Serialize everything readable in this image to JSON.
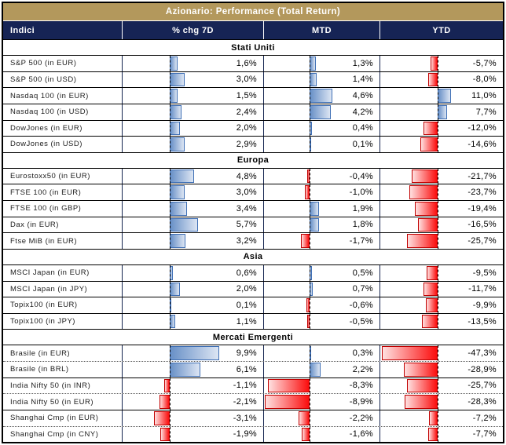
{
  "title": "Azionario: Performance (Total Return)",
  "colors": {
    "header_gold": "#B3985C",
    "header_navy": "#162455",
    "bar_positive_blue": "#6890C7",
    "bar_positive_border": "#3F6FB5",
    "bar_negative_red": "#FB0D0D",
    "bar_negative_border": "#C00000"
  },
  "chart_data": {
    "type": "table",
    "title": "Azionario: Performance (Total Return)",
    "columns": [
      "Indici",
      "% chg 7D",
      "MTD",
      "YTD"
    ],
    "value_unit": "percent",
    "bar_style": "dashed zero axis per column; positive values blue bars extending right, negative values red bars extending left",
    "sections": [
      {
        "name": "Stati Uniti",
        "rows": [
          {
            "label": "S&P 500 (in EUR)",
            "chg7d": 1.6,
            "mtd": 1.3,
            "ytd": -5.7,
            "display": [
              "1,6%",
              "1,3%",
              "-5,7%"
            ],
            "sep": "solid"
          },
          {
            "label": "S&P 500 (in USD)",
            "chg7d": 3.0,
            "mtd": 1.4,
            "ytd": -8.0,
            "display": [
              "3,0%",
              "1,4%",
              "-8,0%"
            ],
            "sep": "solid"
          },
          {
            "label": "Nasdaq 100 (in EUR)",
            "chg7d": 1.5,
            "mtd": 4.6,
            "ytd": 11.0,
            "display": [
              "1,5%",
              "4,6%",
              "11,0%"
            ],
            "sep": "solid"
          },
          {
            "label": "Nasdaq 100 (in USD)",
            "chg7d": 2.4,
            "mtd": 4.2,
            "ytd": 7.7,
            "display": [
              "2,4%",
              "4,2%",
              "7,7%"
            ],
            "sep": "solid"
          },
          {
            "label": "DowJones (in EUR)",
            "chg7d": 2.0,
            "mtd": 0.4,
            "ytd": -12.0,
            "display": [
              "2,0%",
              "0,4%",
              "-12,0%"
            ],
            "sep": "solid"
          },
          {
            "label": "DowJones (in USD)",
            "chg7d": 2.9,
            "mtd": 0.1,
            "ytd": -14.6,
            "display": [
              "2,9%",
              "0,1%",
              "-14,6%"
            ],
            "sep": "solid"
          }
        ]
      },
      {
        "name": "Europa",
        "rows": [
          {
            "label": "Eurostoxx50 (in EUR)",
            "chg7d": 4.8,
            "mtd": -0.4,
            "ytd": -21.7,
            "display": [
              "4,8%",
              "-0,4%",
              "-21,7%"
            ],
            "sep": "solid"
          },
          {
            "label": "FTSE 100 (in EUR)",
            "chg7d": 3.0,
            "mtd": -1.0,
            "ytd": -23.7,
            "display": [
              "3,0%",
              "-1,0%",
              "-23,7%"
            ],
            "sep": "solid"
          },
          {
            "label": "FTSE 100 (in GBP)",
            "chg7d": 3.4,
            "mtd": 1.9,
            "ytd": -19.4,
            "display": [
              "3,4%",
              "1,9%",
              "-19,4%"
            ],
            "sep": "solid"
          },
          {
            "label": "Dax (in EUR)",
            "chg7d": 5.7,
            "mtd": 1.8,
            "ytd": -16.5,
            "display": [
              "5,7%",
              "1,8%",
              "-16,5%"
            ],
            "sep": "solid"
          },
          {
            "label": "Ftse MiB (in EUR)",
            "chg7d": 3.2,
            "mtd": -1.7,
            "ytd": -25.7,
            "display": [
              "3,2%",
              "-1,7%",
              "-25,7%"
            ],
            "sep": "solid"
          }
        ]
      },
      {
        "name": "Asia",
        "rows": [
          {
            "label": "MSCI Japan (in EUR)",
            "chg7d": 0.6,
            "mtd": 0.5,
            "ytd": -9.5,
            "display": [
              "0,6%",
              "0,5%",
              "-9,5%"
            ],
            "sep": "solid"
          },
          {
            "label": "MSCI Japan (in JPY)",
            "chg7d": 2.0,
            "mtd": 0.7,
            "ytd": -11.7,
            "display": [
              "2,0%",
              "0,7%",
              "-11,7%"
            ],
            "sep": "solid"
          },
          {
            "label": "Topix100 (in EUR)",
            "chg7d": 0.1,
            "mtd": -0.6,
            "ytd": -9.9,
            "display": [
              "0,1%",
              "-0,6%",
              "-9,9%"
            ],
            "sep": "solid"
          },
          {
            "label": "Topix100 (in JPY)",
            "chg7d": 1.1,
            "mtd": -0.5,
            "ytd": -13.5,
            "display": [
              "1,1%",
              "-0,5%",
              "-13,5%"
            ],
            "sep": "solid"
          }
        ]
      },
      {
        "name": "Mercati Emergenti",
        "rows": [
          {
            "label": "Brasile (in EUR)",
            "chg7d": 9.9,
            "mtd": 0.3,
            "ytd": -47.3,
            "display": [
              "9,9%",
              "0,3%",
              "-47,3%"
            ],
            "sep": "solid"
          },
          {
            "label": "Brasile (in BRL)",
            "chg7d": 6.1,
            "mtd": 2.2,
            "ytd": -28.9,
            "display": [
              "6,1%",
              "2,2%",
              "-28,9%"
            ],
            "sep": "dotted"
          },
          {
            "label": "India Nifty 50 (in INR)",
            "chg7d": -1.1,
            "mtd": -8.3,
            "ytd": -25.7,
            "display": [
              "-1,1%",
              "-8,3%",
              "-25,7%"
            ],
            "sep": "solid"
          },
          {
            "label": "India Nifty 50 (in EUR)",
            "chg7d": -2.1,
            "mtd": -8.9,
            "ytd": -28.3,
            "display": [
              "-2,1%",
              "-8,9%",
              "-28,3%"
            ],
            "sep": "dotted"
          },
          {
            "label": "Shanghai Cmp (in EUR)",
            "chg7d": -3.1,
            "mtd": -2.2,
            "ytd": -7.2,
            "display": [
              "-3,1%",
              "-2,2%",
              "-7,2%"
            ],
            "sep": "solid"
          },
          {
            "label": "Shanghai Cmp (in CNY)",
            "chg7d": -1.9,
            "mtd": -1.6,
            "ytd": -7.7,
            "display": [
              "-1,9%",
              "-1,6%",
              "-7,7%"
            ],
            "sep": "dotted"
          }
        ]
      }
    ]
  }
}
